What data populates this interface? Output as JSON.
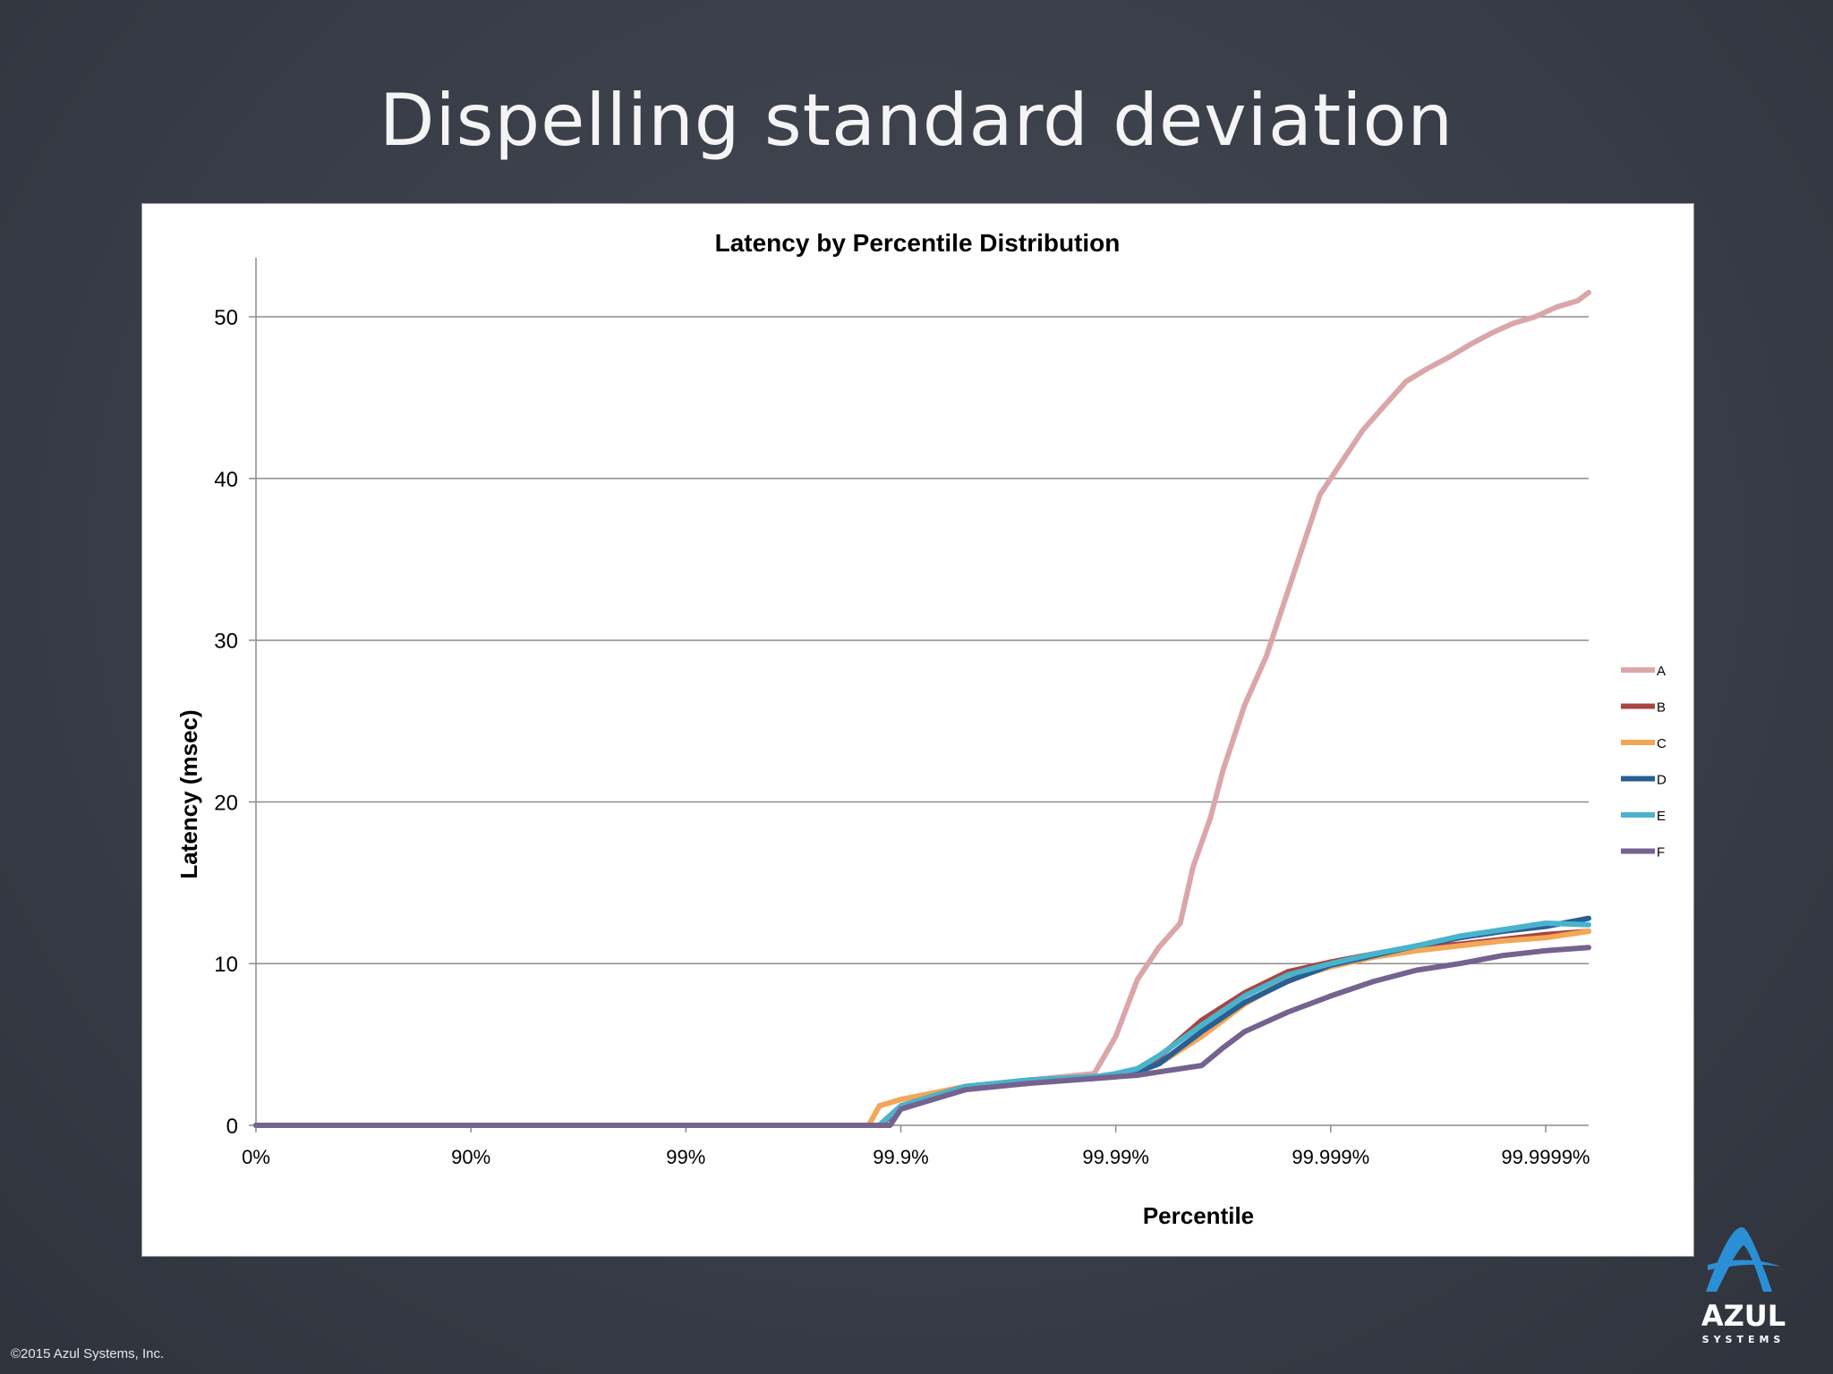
{
  "slide": {
    "title": "Dispelling standard deviation",
    "copyright": "©2015 Azul Systems, Inc.",
    "logo_text": "AZUL",
    "logo_subtext": "SYSTEMS"
  },
  "chart_data": {
    "type": "line",
    "title": "Latency by Percentile Distribution",
    "xlabel": "Percentile",
    "ylabel": "Latency (msec)",
    "x_scale": "log-percentile",
    "x_ticks": [
      "0%",
      "90%",
      "99%",
      "99.9%",
      "99.99%",
      "99.999%",
      "99.9999%"
    ],
    "ylim": [
      0,
      52
    ],
    "y_ticks": [
      0,
      10,
      20,
      30,
      40,
      50
    ],
    "grid": "horizontal",
    "legend_position": "right",
    "x_note": "x values are the number of nines in the percentile (0 = 0%, 1 = 90%, 2 = 99%, 3 = 99.9%, ...)",
    "series": [
      {
        "name": "A",
        "color": "#dba6a9",
        "x": [
          0,
          2.9,
          3.0,
          3.3,
          3.6,
          3.9,
          4.0,
          4.1,
          4.2,
          4.3,
          4.36,
          4.44,
          4.5,
          4.6,
          4.7,
          4.75,
          4.85,
          4.95,
          5.05,
          5.15,
          5.25,
          5.35,
          5.45,
          5.55,
          5.65,
          5.75,
          5.85,
          5.95,
          6.05,
          6.15,
          6.2
        ],
        "y": [
          0,
          0,
          1,
          2.3,
          2.8,
          3.2,
          5.5,
          9,
          11,
          12.5,
          16,
          19,
          22,
          26,
          29,
          31,
          35,
          39,
          41,
          43,
          44.5,
          46,
          46.8,
          47.5,
          48.3,
          49,
          49.6,
          50,
          50.6,
          51,
          51.5
        ]
      },
      {
        "name": "B",
        "color": "#a94442",
        "x": [
          0,
          2.9,
          3.0,
          3.3,
          3.6,
          3.9,
          4.0,
          4.1,
          4.2,
          4.4,
          4.6,
          4.8,
          5.0,
          5.2,
          5.4,
          5.6,
          5.8,
          6.0,
          6.2
        ],
        "y": [
          0,
          0,
          1,
          2.3,
          2.7,
          2.9,
          3.0,
          3.3,
          4.2,
          6.5,
          8.2,
          9.5,
          10.1,
          10.6,
          11.0,
          11.2,
          11.5,
          11.8,
          12.0
        ]
      },
      {
        "name": "C",
        "color": "#f3a757",
        "x": [
          0,
          2.85,
          2.9,
          3.0,
          3.3,
          3.6,
          3.9,
          4.0,
          4.1,
          4.2,
          4.4,
          4.6,
          4.8,
          5.0,
          5.2,
          5.4,
          5.6,
          5.8,
          6.0,
          6.2
        ],
        "y": [
          0,
          0,
          1.2,
          1.6,
          2.4,
          2.8,
          3.0,
          3.1,
          3.3,
          3.8,
          5.5,
          7.5,
          9.0,
          9.8,
          10.4,
          10.8,
          11.1,
          11.4,
          11.6,
          12.0
        ]
      },
      {
        "name": "D",
        "color": "#2a5f93",
        "x": [
          0,
          2.9,
          3.0,
          3.3,
          3.6,
          3.9,
          4.0,
          4.1,
          4.2,
          4.4,
          4.6,
          4.8,
          5.0,
          5.2,
          5.4,
          5.6,
          5.8,
          6.0,
          6.2
        ],
        "y": [
          0,
          0,
          1.2,
          2.4,
          2.8,
          3.0,
          3.1,
          3.3,
          3.8,
          5.8,
          7.6,
          8.9,
          9.9,
          10.5,
          11.1,
          11.6,
          12.0,
          12.3,
          12.8
        ]
      },
      {
        "name": "E",
        "color": "#4ab3cc",
        "x": [
          0,
          2.9,
          3.0,
          3.3,
          3.6,
          3.9,
          4.0,
          4.1,
          4.2,
          4.4,
          4.6,
          4.8,
          5.0,
          5.2,
          5.4,
          5.6,
          5.8,
          6.0,
          6.2
        ],
        "y": [
          0,
          0,
          1.2,
          2.4,
          2.8,
          3.0,
          3.2,
          3.5,
          4.3,
          6.2,
          8.0,
          9.3,
          10.0,
          10.6,
          11.1,
          11.7,
          12.1,
          12.5,
          12.4
        ]
      },
      {
        "name": "F",
        "color": "#75628f",
        "x": [
          0,
          2.95,
          3.0,
          3.3,
          3.6,
          3.9,
          4.0,
          4.1,
          4.2,
          4.4,
          4.5,
          4.6,
          4.8,
          5.0,
          5.2,
          5.4,
          5.6,
          5.8,
          6.0,
          6.2
        ],
        "y": [
          0,
          0,
          1.0,
          2.2,
          2.6,
          2.9,
          3.0,
          3.1,
          3.3,
          3.7,
          4.8,
          5.8,
          7.0,
          8.0,
          8.9,
          9.6,
          10.0,
          10.5,
          10.8,
          11.0
        ]
      }
    ]
  }
}
